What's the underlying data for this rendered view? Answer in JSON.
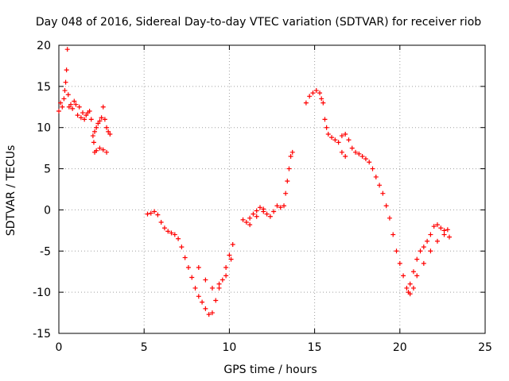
{
  "chart_data": {
    "type": "scatter",
    "title": "Day 048 of 2016, Sidereal Day-to-day VTEC variation (SDTVAR) for receiver riob",
    "xlabel": "GPS time / hours",
    "ylabel": "SDTVAR / TECUs",
    "xlim": [
      0,
      25
    ],
    "ylim": [
      -15,
      20
    ],
    "xticks": [
      0,
      5,
      10,
      15,
      20,
      25
    ],
    "yticks": [
      -15,
      -10,
      -5,
      0,
      5,
      10,
      15,
      20
    ],
    "grid": true,
    "marker": "+",
    "color": "#ff0000",
    "series": [
      {
        "points": [
          [
            0.0,
            12.0
          ],
          [
            0.1,
            13.0
          ],
          [
            0.2,
            12.5
          ],
          [
            0.3,
            13.5
          ],
          [
            0.35,
            14.5
          ],
          [
            0.4,
            15.5
          ],
          [
            0.45,
            17.0
          ],
          [
            0.5,
            19.5
          ],
          [
            0.55,
            14.0
          ],
          [
            0.6,
            12.5
          ],
          [
            0.7,
            12.8
          ],
          [
            0.8,
            12.3
          ],
          [
            0.9,
            13.2
          ],
          [
            1.0,
            12.8
          ],
          [
            1.1,
            11.5
          ],
          [
            1.2,
            12.5
          ],
          [
            1.3,
            11.2
          ],
          [
            1.4,
            11.8
          ],
          [
            1.5,
            11.0
          ],
          [
            1.6,
            11.5
          ],
          [
            1.7,
            11.8
          ],
          [
            1.8,
            12.0
          ],
          [
            1.9,
            11.0
          ],
          [
            2.0,
            9.0
          ],
          [
            2.05,
            8.2
          ],
          [
            2.1,
            9.5
          ],
          [
            2.2,
            10.0
          ],
          [
            2.3,
            10.5
          ],
          [
            2.4,
            10.8
          ],
          [
            2.5,
            11.2
          ],
          [
            2.6,
            12.5
          ],
          [
            2.7,
            11.0
          ],
          [
            2.8,
            10.0
          ],
          [
            2.9,
            9.5
          ],
          [
            3.0,
            9.2
          ],
          [
            2.2,
            7.2
          ],
          [
            2.4,
            7.5
          ],
          [
            2.6,
            7.3
          ],
          [
            2.8,
            7.0
          ],
          [
            2.1,
            7.0
          ]
        ]
      },
      {
        "points": [
          [
            5.2,
            -0.5
          ],
          [
            5.4,
            -0.4
          ],
          [
            5.6,
            -0.2
          ],
          [
            5.8,
            -0.6
          ],
          [
            6.0,
            -1.5
          ],
          [
            6.2,
            -2.2
          ],
          [
            6.4,
            -2.6
          ],
          [
            6.6,
            -2.8
          ],
          [
            6.8,
            -3.0
          ],
          [
            7.0,
            -3.5
          ],
          [
            7.2,
            -4.5
          ],
          [
            7.4,
            -5.8
          ],
          [
            7.6,
            -7.0
          ],
          [
            7.8,
            -8.2
          ],
          [
            8.0,
            -9.5
          ],
          [
            8.2,
            -10.5
          ],
          [
            8.4,
            -11.2
          ],
          [
            8.6,
            -12.0
          ],
          [
            8.8,
            -12.7
          ],
          [
            9.0,
            -12.5
          ],
          [
            9.2,
            -11.0
          ],
          [
            9.4,
            -9.5
          ],
          [
            9.6,
            -8.5
          ],
          [
            9.8,
            -7.0
          ],
          [
            10.0,
            -5.5
          ],
          [
            10.2,
            -4.2
          ],
          [
            8.2,
            -7.0
          ],
          [
            8.6,
            -8.5
          ],
          [
            9.0,
            -9.5
          ],
          [
            9.4,
            -9.0
          ],
          [
            9.8,
            -8.0
          ],
          [
            10.1,
            -6.0
          ]
        ]
      },
      {
        "points": [
          [
            10.8,
            -1.2
          ],
          [
            11.0,
            -1.5
          ],
          [
            11.2,
            -1.0
          ],
          [
            11.4,
            -0.5
          ],
          [
            11.6,
            -0.1
          ],
          [
            11.8,
            0.3
          ],
          [
            12.0,
            0.1
          ],
          [
            12.2,
            -0.5
          ],
          [
            12.4,
            -0.8
          ],
          [
            12.6,
            -0.2
          ],
          [
            12.8,
            0.5
          ],
          [
            13.0,
            0.3
          ],
          [
            13.2,
            0.5
          ],
          [
            13.3,
            2.0
          ],
          [
            13.4,
            3.5
          ],
          [
            13.5,
            5.0
          ],
          [
            13.6,
            6.5
          ],
          [
            13.7,
            7.0
          ],
          [
            11.2,
            -1.8
          ],
          [
            11.6,
            -0.8
          ],
          [
            12.0,
            -0.2
          ]
        ]
      },
      {
        "points": [
          [
            14.5,
            13.0
          ],
          [
            14.7,
            13.8
          ],
          [
            14.9,
            14.2
          ],
          [
            15.1,
            14.5
          ],
          [
            15.3,
            14.2
          ],
          [
            15.4,
            13.5
          ],
          [
            15.5,
            13.0
          ],
          [
            15.6,
            11.0
          ],
          [
            15.7,
            10.0
          ],
          [
            15.8,
            9.2
          ],
          [
            16.0,
            8.8
          ],
          [
            16.2,
            8.5
          ],
          [
            16.4,
            8.2
          ],
          [
            16.6,
            9.0
          ],
          [
            16.8,
            9.2
          ],
          [
            17.0,
            8.5
          ],
          [
            17.2,
            7.5
          ],
          [
            17.4,
            7.0
          ],
          [
            17.6,
            6.8
          ],
          [
            17.8,
            6.5
          ],
          [
            18.0,
            6.2
          ],
          [
            18.2,
            5.8
          ],
          [
            18.4,
            5.0
          ],
          [
            18.6,
            4.0
          ],
          [
            18.8,
            3.0
          ],
          [
            19.0,
            2.0
          ],
          [
            19.2,
            0.5
          ],
          [
            19.4,
            -1.0
          ],
          [
            19.6,
            -3.0
          ],
          [
            19.8,
            -5.0
          ],
          [
            20.0,
            -6.5
          ],
          [
            20.2,
            -8.0
          ],
          [
            20.4,
            -9.5
          ],
          [
            20.5,
            -10.0
          ],
          [
            20.6,
            -9.0
          ],
          [
            20.8,
            -7.5
          ],
          [
            21.0,
            -6.0
          ],
          [
            21.2,
            -5.0
          ],
          [
            21.4,
            -4.5
          ],
          [
            21.6,
            -3.8
          ],
          [
            21.8,
            -3.0
          ],
          [
            22.0,
            -2.0
          ],
          [
            22.2,
            -1.8
          ],
          [
            22.4,
            -2.2
          ],
          [
            22.6,
            -2.5
          ],
          [
            22.8,
            -2.4
          ],
          [
            16.6,
            7.0
          ],
          [
            16.8,
            6.5
          ],
          [
            20.6,
            -10.2
          ],
          [
            20.8,
            -9.5
          ],
          [
            21.0,
            -8.0
          ],
          [
            21.4,
            -6.5
          ],
          [
            21.8,
            -5.0
          ],
          [
            22.2,
            -3.8
          ],
          [
            22.6,
            -3.0
          ],
          [
            22.9,
            -3.3
          ]
        ]
      }
    ]
  }
}
